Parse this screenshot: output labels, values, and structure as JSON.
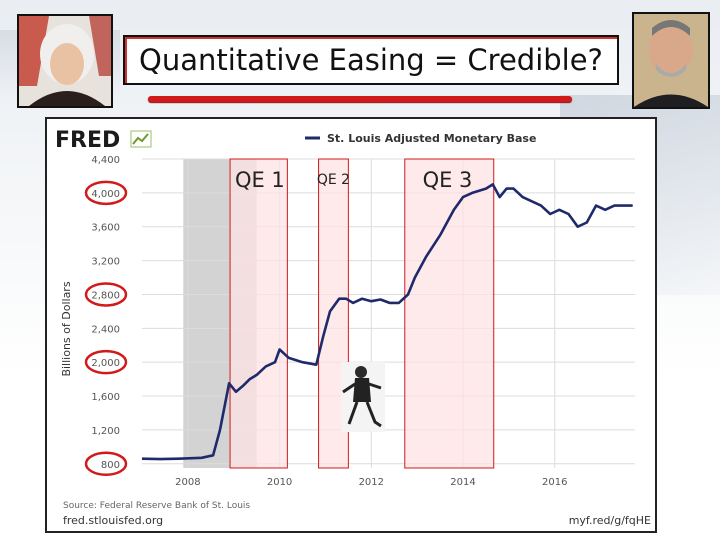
{
  "slide": {
    "title": "Quantitative Easing = Credible?"
  },
  "images": {
    "left_portrait": "portrait-photo",
    "right_portrait": "portrait-photo",
    "dancer": "dancing-figure-photo"
  },
  "colors": {
    "accent_red": "#d11a1a",
    "series_line": "#1f2a6b",
    "qe_shading": "#fde1e4",
    "recession_shading": "#c8c8c8"
  },
  "chart_data": {
    "type": "line",
    "brand": "FRED",
    "legend": "St. Louis Adjusted Monetary Base",
    "ylabel": "Billions of Dollars",
    "xlabel": "",
    "x_ticks": [
      "2008",
      "2010",
      "2012",
      "2014",
      "2016"
    ],
    "y_ticks": [
      800,
      1200,
      1600,
      2000,
      2400,
      2800,
      3200,
      3600,
      4000,
      4400
    ],
    "y_tick_labels": [
      "800",
      "1,200",
      "1,600",
      "2,000",
      "2,400",
      "2,800",
      "3,200",
      "3,600",
      "4,000",
      "4,400"
    ],
    "circled_y_ticks": [
      800,
      2000,
      2800,
      4000
    ],
    "xlim": [
      2007.0,
      2017.75
    ],
    "ylim": [
      750,
      4400
    ],
    "grid": true,
    "recession": {
      "start": 2007.9,
      "end": 2009.5
    },
    "qe_periods": [
      {
        "label": "QE 1",
        "start": 2008.92,
        "end": 2010.17
      },
      {
        "label": "QE 2",
        "start": 2010.85,
        "end": 2011.5
      },
      {
        "label": "QE 3",
        "start": 2012.73,
        "end": 2014.67
      }
    ],
    "series": [
      {
        "x": [
          2007.0,
          2007.4,
          2007.8,
          2008.3,
          2008.55,
          2008.7,
          2008.9,
          2009.05,
          2009.2,
          2009.35,
          2009.5,
          2009.7,
          2009.9,
          2010.0,
          2010.2,
          2010.5,
          2010.8,
          2010.95,
          2011.1,
          2011.3,
          2011.45,
          2011.6,
          2011.8,
          2012.0,
          2012.2,
          2012.4,
          2012.6,
          2012.8,
          2012.95,
          2013.2,
          2013.5,
          2013.8,
          2014.0,
          2014.2,
          2014.5,
          2014.65,
          2014.8,
          2014.95,
          2015.1,
          2015.3,
          2015.5,
          2015.7,
          2015.9,
          2016.1,
          2016.3,
          2016.5,
          2016.7,
          2016.9,
          2017.1,
          2017.3,
          2017.5,
          2017.7
        ],
        "y": [
          860,
          855,
          860,
          870,
          900,
          1200,
          1750,
          1650,
          1720,
          1800,
          1850,
          1950,
          2000,
          2150,
          2050,
          2000,
          1970,
          2300,
          2600,
          2750,
          2750,
          2700,
          2750,
          2720,
          2740,
          2700,
          2700,
          2800,
          3000,
          3250,
          3500,
          3800,
          3950,
          4000,
          4050,
          4100,
          3950,
          4050,
          4050,
          3950,
          3900,
          3850,
          3750,
          3800,
          3750,
          3600,
          3650,
          3850,
          3800,
          3850,
          3850,
          3850
        ]
      }
    ],
    "source_text": "Source: Federal Reserve Bank of St. Louis",
    "footer_left": "fred.stlouisfed.org",
    "footer_right": "myf.red/g/fqHE"
  }
}
